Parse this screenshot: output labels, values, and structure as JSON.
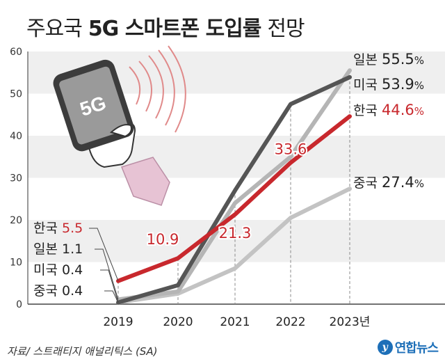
{
  "title": {
    "prefix": "주요국",
    "bold": "5G 스마트폰 도입률",
    "suffix": "전망"
  },
  "source": "자료/ 스트래티지 애널리틱스 (SA)",
  "logo": {
    "mark": "y",
    "text": "연합뉴스"
  },
  "illustration": {
    "phone_label": "5G"
  },
  "chart_data": {
    "type": "line",
    "x": [
      "2019",
      "2020",
      "2021",
      "2022",
      "2023년"
    ],
    "ylim": [
      0,
      60
    ],
    "yticks": [
      0,
      10,
      20,
      30,
      40,
      50,
      60
    ],
    "grid": "alternating horizontal bands",
    "series": [
      {
        "name": "한국",
        "color": "#c8282d",
        "width": 6,
        "values": [
          5.5,
          10.9,
          21.3,
          33.6,
          44.6
        ],
        "start_label": "5.5",
        "end_label": "44.6",
        "unit": "%",
        "point_labels": [
          "",
          "10.9",
          "21.3",
          "33.6",
          ""
        ]
      },
      {
        "name": "일본",
        "color": "#b5b5b5",
        "width": 6,
        "values": [
          1.1,
          3.0,
          24.0,
          35.0,
          55.5
        ],
        "start_label": "1.1",
        "end_label": "55.5",
        "unit": "%"
      },
      {
        "name": "미국",
        "color": "#555555",
        "width": 6,
        "values": [
          0.4,
          4.5,
          27.0,
          47.5,
          53.9
        ],
        "start_label": "0.4",
        "end_label": "53.9",
        "unit": "%"
      },
      {
        "name": "중국",
        "color": "#c3c3c3",
        "width": 6,
        "values": [
          0.4,
          2.5,
          8.5,
          20.5,
          27.4
        ],
        "start_label": "0.4",
        "end_label": "27.4",
        "unit": "%"
      }
    ]
  }
}
